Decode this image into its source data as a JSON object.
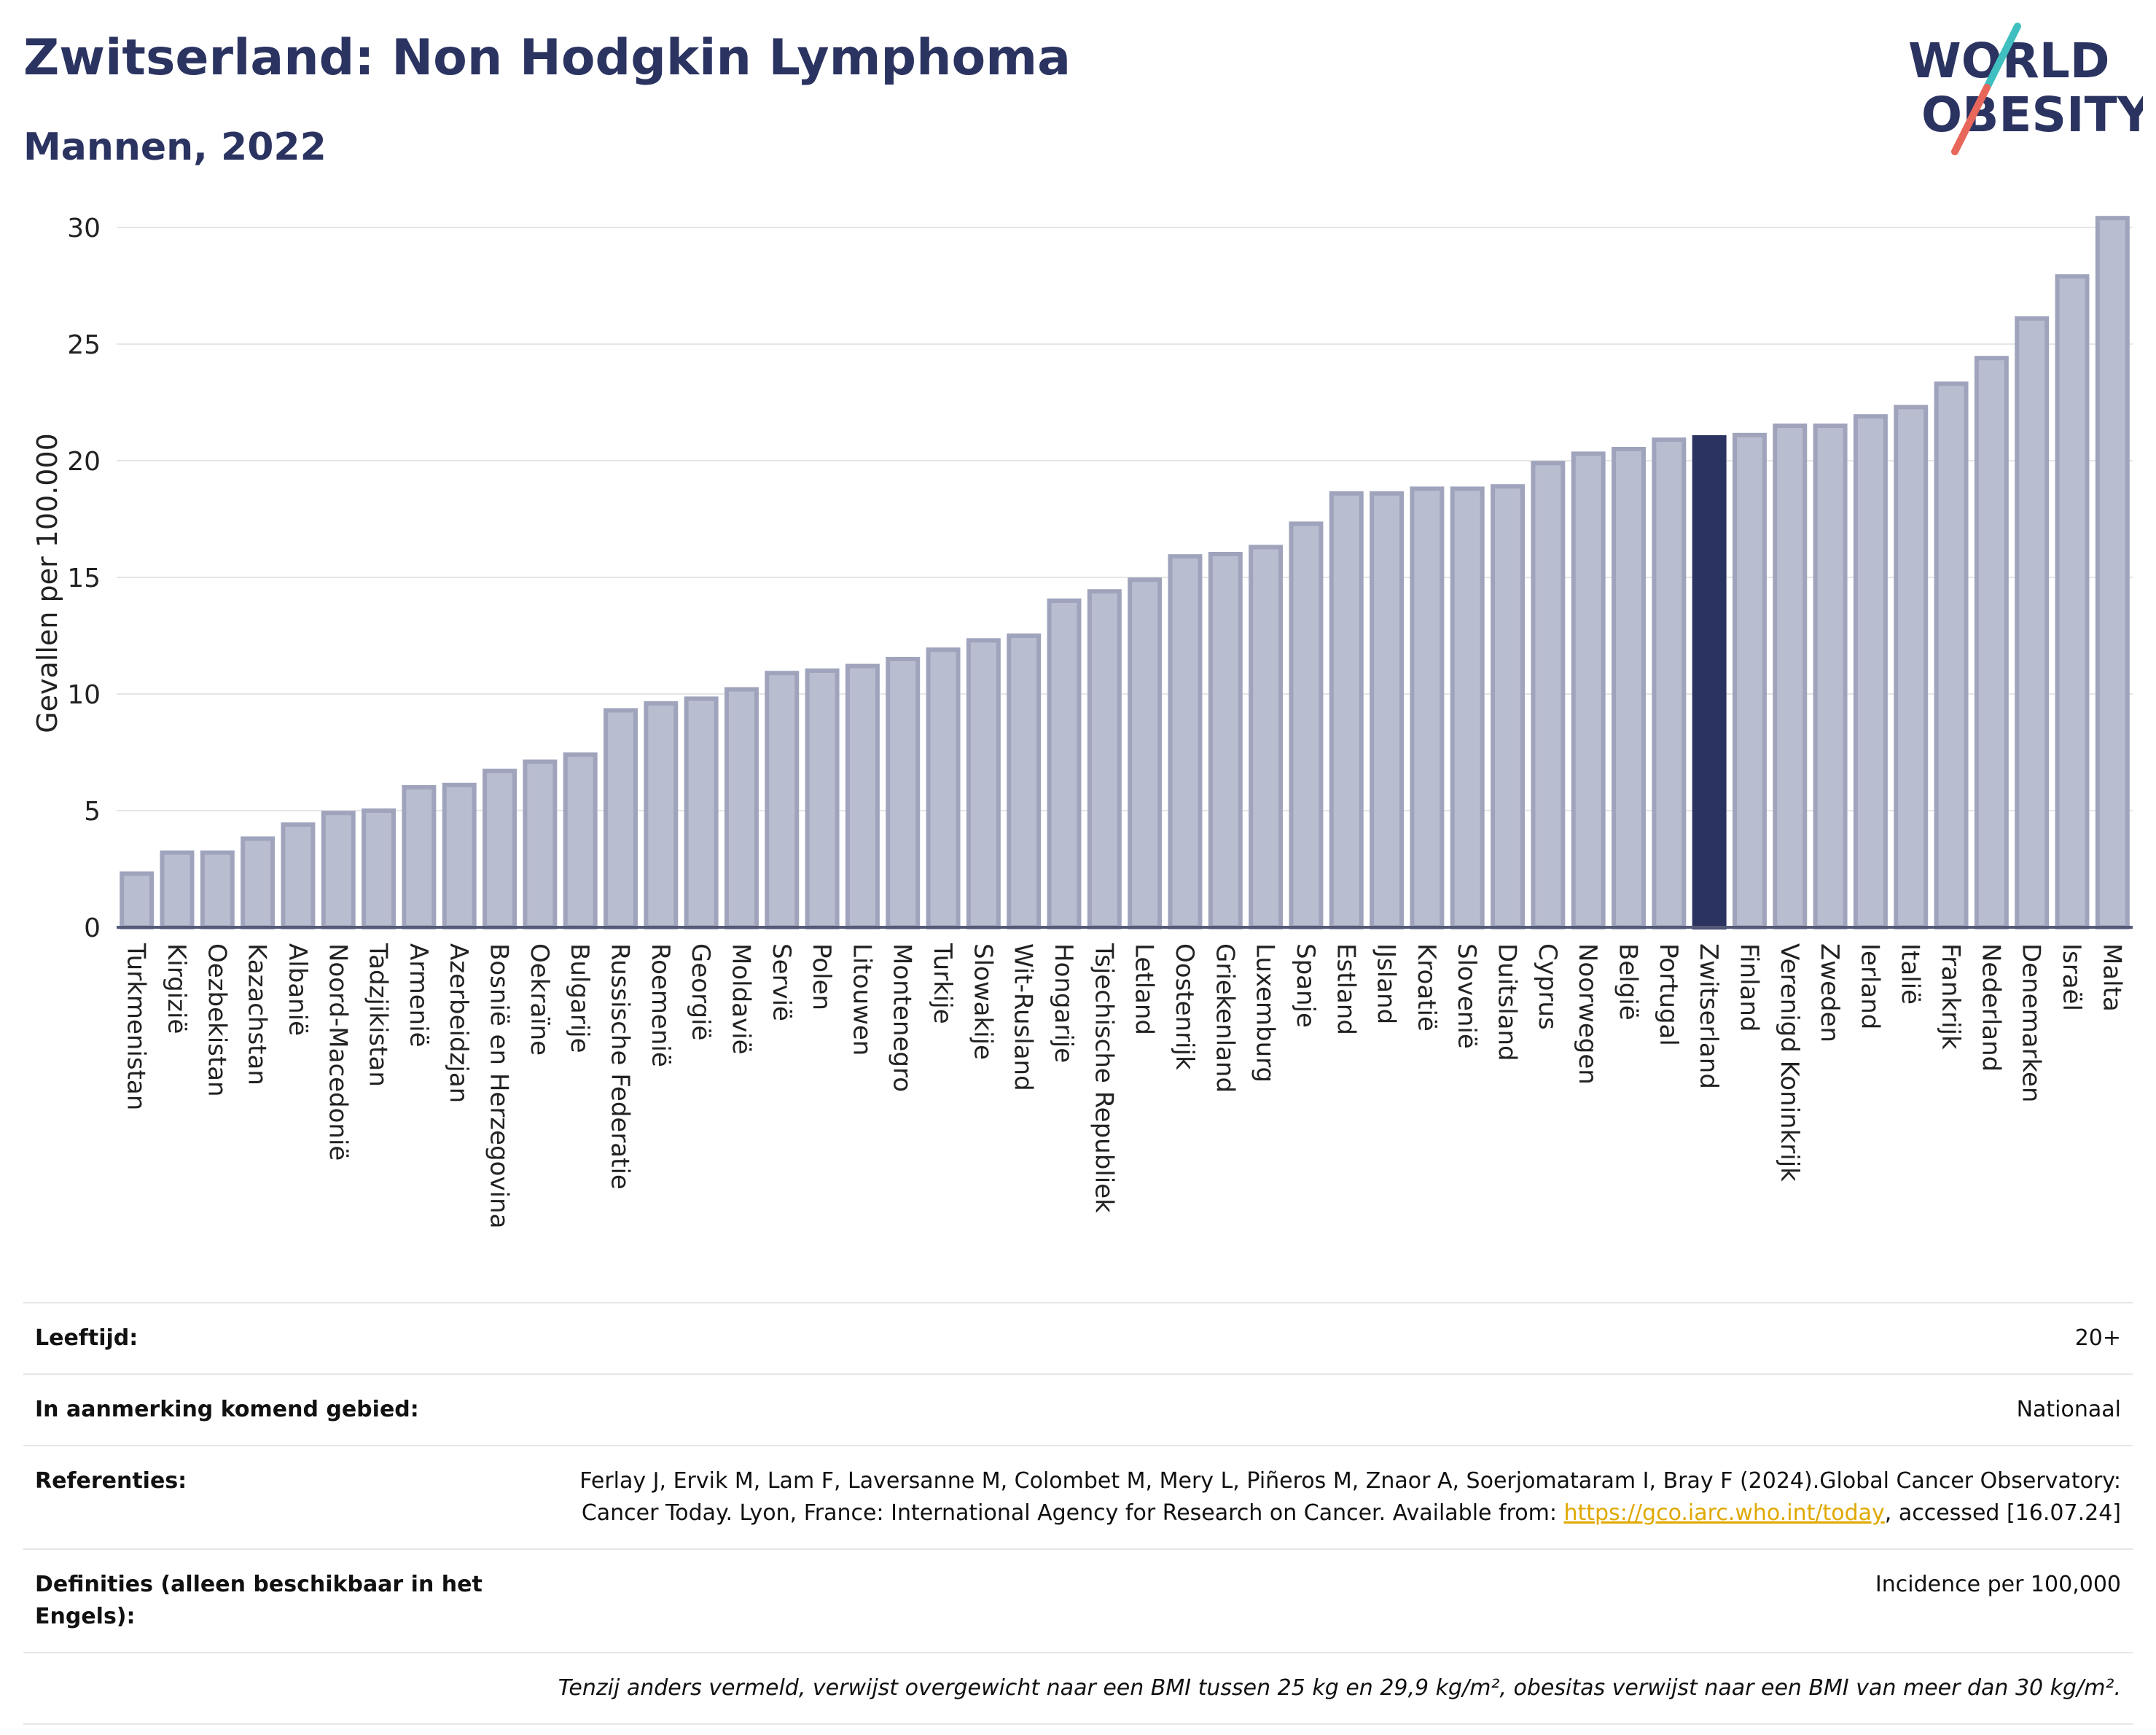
{
  "header": {
    "title": "Zwitserland: Non Hodgkin Lymphoma",
    "subtitle": "Mannen, 2022"
  },
  "logo": {
    "line1": "WORLD",
    "line2": "OBESITY",
    "colors": {
      "text": "#2b3361",
      "accent_red": "#e8665a",
      "accent_teal": "#3fbfbf"
    }
  },
  "chart_data": {
    "type": "bar",
    "ylabel": "Gevallen per 100.000",
    "ylim": [
      0,
      31
    ],
    "yticks": [
      0,
      5,
      10,
      15,
      20,
      25,
      30
    ],
    "grid": true,
    "highlight": "Zwitserland",
    "colors": {
      "bar": "#b9bdd0",
      "bar_border": "#9fa4bc",
      "highlight": "#2b3361",
      "grid": "#e6e6e6",
      "axis": "#555a77"
    },
    "categories": [
      "Turkmenistan",
      "Kirgizië",
      "Oezbekistan",
      "Kazachstan",
      "Albanië",
      "Noord-Macedonië",
      "Tadzjikistan",
      "Armenië",
      "Azerbeidzjan",
      "Bosnië en Herzegovina",
      "Oekraïne",
      "Bulgarije",
      "Russische Federatie",
      "Roemenië",
      "Georgië",
      "Moldavië",
      "Servië",
      "Polen",
      "Litouwen",
      "Montenegro",
      "Turkije",
      "Slowakije",
      "Wit-Rusland",
      "Hongarije",
      "Tsjechische Republiek",
      "Letland",
      "Oostenrijk",
      "Griekenland",
      "Luxemburg",
      "Spanje",
      "Estland",
      "IJsland",
      "Kroatië",
      "Slovenië",
      "Duitsland",
      "Cyprus",
      "Noorwegen",
      "België",
      "Portugal",
      "Zwitserland",
      "Finland",
      "Verenigd Koninkrijk",
      "Zweden",
      "Ierland",
      "Italië",
      "Frankrijk",
      "Nederland",
      "Denemarken",
      "Israël",
      "Malta"
    ],
    "values": [
      2.3,
      3.2,
      3.2,
      3.8,
      4.4,
      4.9,
      5.0,
      6.0,
      6.1,
      6.7,
      7.1,
      7.4,
      9.3,
      9.6,
      9.8,
      10.2,
      10.9,
      11.0,
      11.2,
      11.5,
      11.9,
      12.3,
      12.5,
      14.0,
      14.4,
      14.9,
      15.9,
      16.0,
      16.3,
      17.3,
      18.6,
      18.6,
      18.8,
      18.8,
      18.9,
      19.9,
      20.3,
      20.5,
      20.9,
      21.0,
      21.1,
      21.5,
      21.5,
      21.9,
      22.3,
      23.3,
      24.4,
      26.1,
      27.9,
      30.4
    ]
  },
  "info": {
    "rows": [
      {
        "key": "Leeftijd:",
        "value": "20+"
      },
      {
        "key": "In aanmerking komend gebied:",
        "value": "Nationaal"
      },
      {
        "key": "Referenties:",
        "value_pre": "Ferlay J, Ervik M, Lam F, Laversanne M, Colombet M, Mery L, Piñeros M, Znaor A, Soerjomataram I, Bray F (2024).Global Cancer Observatory: Cancer Today. Lyon, France: International Agency for Research on Cancer. Available from: ",
        "link": "https://gco.iarc.who.int/today",
        "value_post": ", accessed [16.07.24]"
      },
      {
        "key": "Definities (alleen beschikbaar in het Engels):",
        "value": "Incidence per 100,000"
      }
    ],
    "note": "Tenzij anders vermeld, verwijst overgewicht naar een BMI tussen 25 kg en 29,9 kg/m², obesitas verwijst naar een BMI van meer dan 30 kg/m²."
  }
}
